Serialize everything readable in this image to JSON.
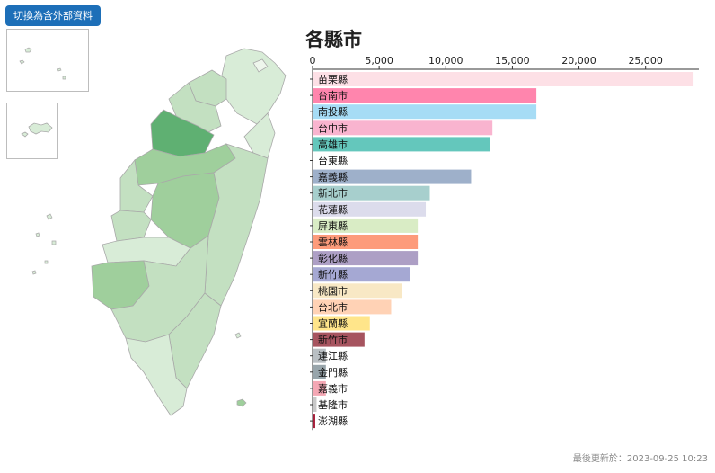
{
  "toolbar": {
    "toggle_label": "切換為含外部資料"
  },
  "footer": {
    "updated": "最後更新於：2023-09-25 10:23"
  },
  "colors": {
    "map_fill_light": "#d8ecd7",
    "map_fill_mid": "#c3e0c1",
    "map_fill_dark": "#9fcf9c",
    "map_fill_highlight": "#5fb072",
    "map_stroke": "#a9a9a9"
  },
  "chart_data": {
    "type": "bar",
    "orientation": "horizontal",
    "title": "各縣市",
    "xlim": [
      0,
      29000
    ],
    "ticks": [
      "0",
      "5,000",
      "10,000",
      "15,000",
      "20,000",
      "25,000"
    ],
    "tick_values": [
      0,
      5000,
      10000,
      15000,
      20000,
      25000
    ],
    "categories": [
      "苗栗縣",
      "台南市",
      "南投縣",
      "台中市",
      "高雄市",
      "台東縣",
      "嘉義縣",
      "新北市",
      "花蓮縣",
      "屏東縣",
      "雲林縣",
      "彰化縣",
      "新竹縣",
      "桃園市",
      "台北市",
      "宜蘭縣",
      "新竹市",
      "連江縣",
      "金門縣",
      "嘉義市",
      "基隆市",
      "澎湖縣"
    ],
    "values": [
      28600,
      16800,
      16800,
      13500,
      13300,
      0,
      11900,
      8800,
      8500,
      7900,
      7900,
      7900,
      7300,
      6700,
      5900,
      4300,
      3900,
      1000,
      1000,
      1000,
      300,
      200
    ],
    "bar_colors": [
      "#fde0e6",
      "#ff85ad",
      "#a6dcf5",
      "#f9b4cf",
      "#64c7bc",
      "#ffffff",
      "#9eb0ca",
      "#a7cfcd",
      "#dcdcec",
      "#d9ecc5",
      "#fd9b7b",
      "#ad9fc5",
      "#a5a8d3",
      "#f8e8c5",
      "#ffd2b5",
      "#ffe58a",
      "#a6545f",
      "#b9bfc3",
      "#98a5ab",
      "#f4a7b4",
      "#c8c8c8",
      "#a61e3a"
    ]
  }
}
